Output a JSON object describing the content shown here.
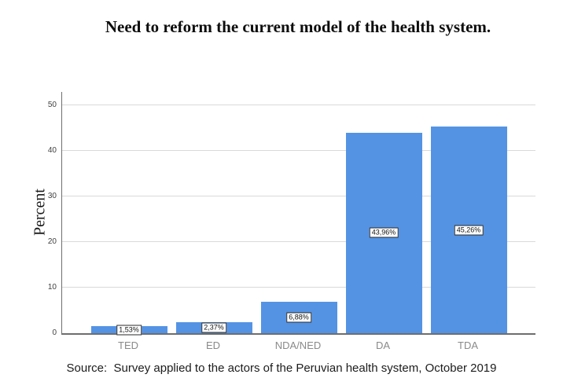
{
  "title": "Need to reform the current model of the health system.",
  "source_note": "Source:  Survey applied to the actors of the Peruvian health system, October 2019",
  "chart_data": {
    "type": "bar",
    "title": "Need to reform the current model of the health system.",
    "categories": [
      "TED",
      "ED",
      "NDA/NED",
      "DA",
      "TDA"
    ],
    "values": [
      1.53,
      2.37,
      6.88,
      43.96,
      45.26
    ],
    "bar_labels": [
      "1,53%",
      "2,37%",
      "6,88%",
      "43,96%",
      "45,26%"
    ],
    "xlabel": "",
    "ylabel": "Percent",
    "ylim": [
      0,
      50
    ],
    "yticks": [
      0,
      10,
      20,
      30,
      40,
      50
    ],
    "grid": true,
    "legend": "none",
    "colors": {
      "bar": "#5493E4",
      "gridline": "#D9D9D9",
      "axis_line": "#6E6E6E",
      "tick_label": "#3F3F3F",
      "category_label": "#8A8A8A",
      "value_label_border": "#2A2A2A",
      "title_text": "#0D0D0D"
    }
  }
}
